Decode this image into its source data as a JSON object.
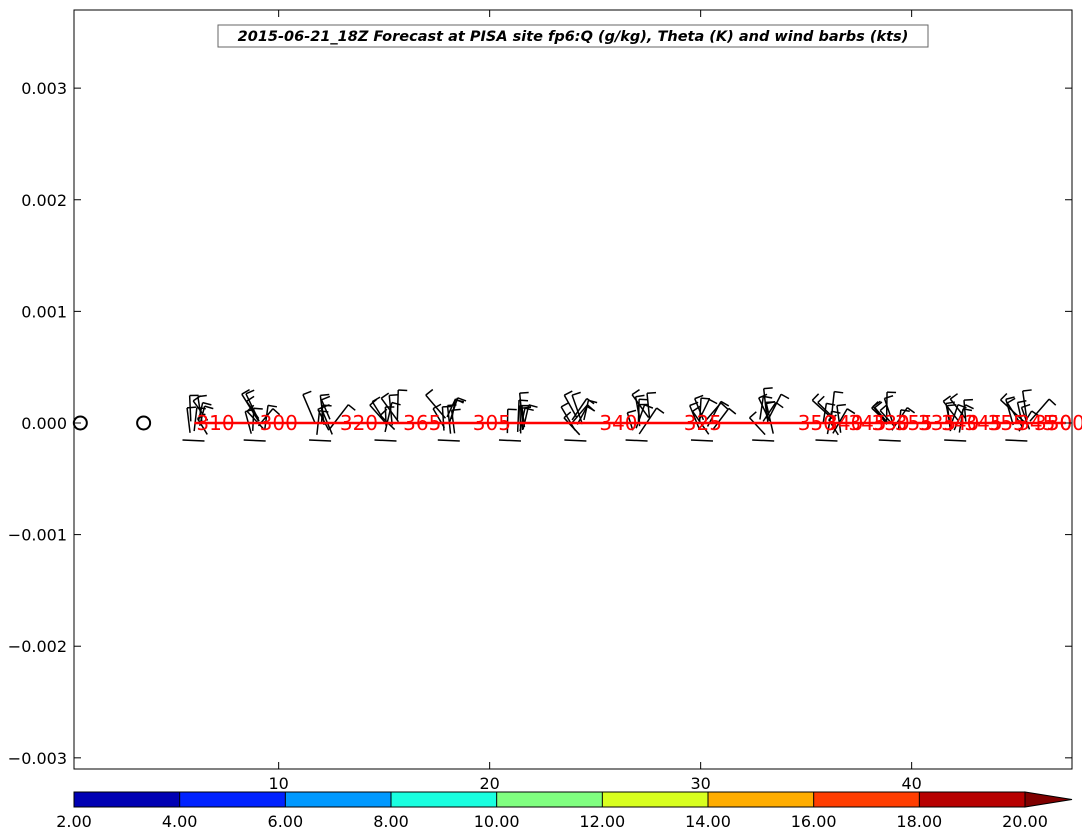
{
  "chart_data": {
    "type": "scatter",
    "title": "2015-06-21_18Z Forecast at PISA site fp6:Q (g/kg), Theta (K) and wind barbs (kts)",
    "xlabel": "",
    "ylabel": "",
    "xlim": [
      0.3,
      47.6
    ],
    "ylim": [
      -0.0031,
      0.0037
    ],
    "x_ticks": [
      "10",
      "20",
      "30",
      "40"
    ],
    "y_ticks": [
      "0.003",
      "0.002",
      "0.001",
      "0.000",
      "−0.001",
      "−0.002",
      "−0.003"
    ],
    "grid": false,
    "q_markers": [
      {
        "x": 0.6,
        "y": 0.0
      },
      {
        "x": 3.6,
        "y": 0.0
      }
    ],
    "theta_line": {
      "color": "#ff0000",
      "x": [
        6.0,
        47.3
      ],
      "y": [
        0.0,
        0.0
      ]
    },
    "theta_labels": [
      {
        "x": 6.1,
        "text": "310"
      },
      {
        "x": 9.1,
        "text": "300"
      },
      {
        "x": 12.9,
        "text": "320"
      },
      {
        "x": 15.9,
        "text": "365"
      },
      {
        "x": 19.2,
        "text": "305"
      },
      {
        "x": 25.2,
        "text": "340"
      },
      {
        "x": 29.2,
        "text": "325"
      },
      {
        "x": 34.6,
        "text": "350"
      },
      {
        "x": 35.9,
        "text": "340"
      },
      {
        "x": 37.0,
        "text": "345"
      },
      {
        "x": 38.1,
        "text": "330"
      },
      {
        "x": 39.2,
        "text": "355"
      },
      {
        "x": 40.3,
        "text": "335"
      },
      {
        "x": 41.4,
        "text": "340"
      },
      {
        "x": 42.5,
        "text": "345"
      },
      {
        "x": 43.6,
        "text": "355"
      },
      {
        "x": 45.0,
        "text": "345"
      },
      {
        "x": 45.8,
        "text": "350"
      },
      {
        "x": 46.4,
        "text": "300"
      }
    ],
    "wind_barb_x": [
      6.2,
      9.1,
      12.2,
      15.3,
      18.3,
      21.2,
      24.3,
      27.2,
      30.3,
      33.2,
      36.2,
      39.2,
      42.3,
      45.2
    ],
    "colorbar": {
      "type": "discrete",
      "ticks": [
        "2.00",
        "4.00",
        "6.00",
        "8.00",
        "10.00",
        "12.00",
        "14.00",
        "16.00",
        "18.00",
        "20.00"
      ],
      "colors": [
        "#0000b3",
        "#0022ff",
        "#0099ff",
        "#19ffe0",
        "#80ff80",
        "#d8ff1f",
        "#ffad00",
        "#ff3d00",
        "#b70000",
        "#800000"
      ],
      "extend": "max"
    }
  }
}
